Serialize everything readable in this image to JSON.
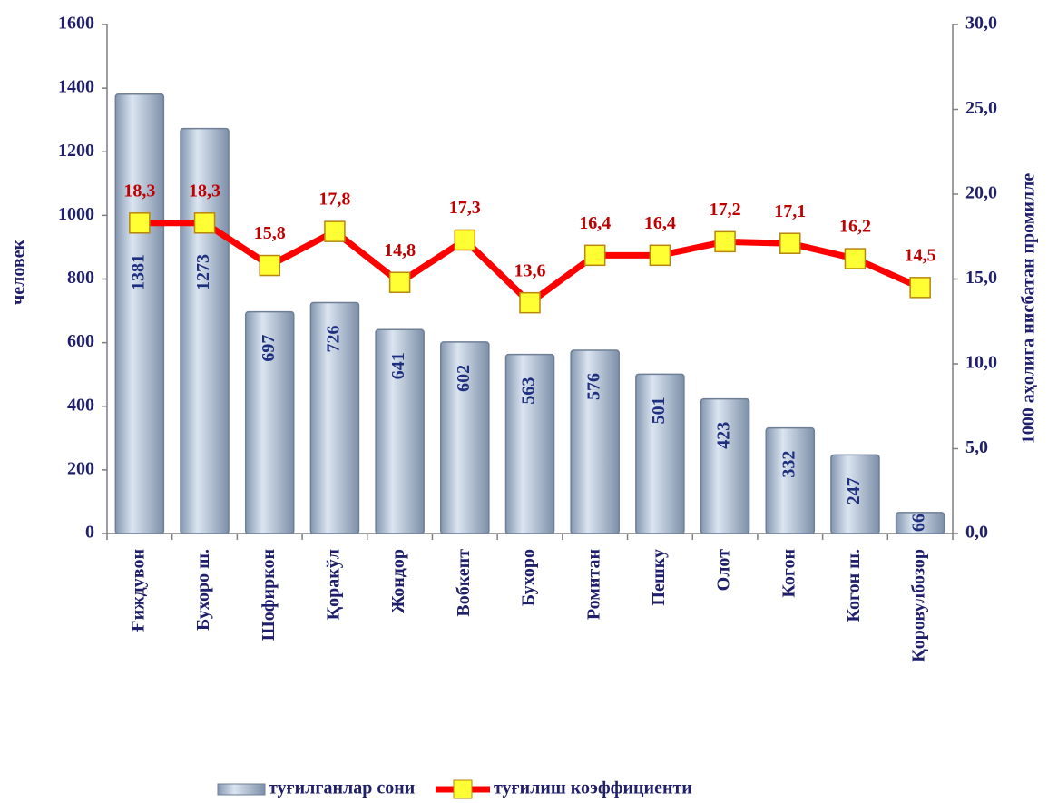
{
  "chart_data": {
    "type": "bar",
    "categories": [
      "Ғиждувон",
      "Бухоро ш.",
      "Шофиркон",
      "Қоракўл",
      "Жондор",
      "Вобкент",
      "Бухоро",
      "Ромитан",
      "Пешку",
      "Олот",
      "Когон",
      "Когон ш.",
      "Қоровулбозор"
    ],
    "series": [
      {
        "name": "туғилганлар сони",
        "type": "bar",
        "color": "#b9c9dd",
        "values": [
          1381,
          1273,
          697,
          726,
          641,
          602,
          563,
          576,
          501,
          423,
          332,
          247,
          66
        ]
      },
      {
        "name": "туғилиш коэффициенти",
        "type": "line",
        "axis": "y2",
        "color": "#ff0000",
        "marker_color": "#ffff33",
        "values": [
          18.3,
          18.3,
          15.8,
          17.8,
          14.8,
          17.3,
          13.6,
          16.4,
          16.4,
          17.2,
          17.1,
          16.2,
          14.5
        ],
        "value_labels": [
          "18,3",
          "18,3",
          "15,8",
          "17,8",
          "14,8",
          "17,3",
          "13,6",
          "16,4",
          "16,4",
          "17,2",
          "17,1",
          "16,2",
          "14,5"
        ]
      }
    ],
    "ylabel": "человек",
    "y2label": "1000 аҳолига нисбатан промилле",
    "ylim": [
      0,
      1600
    ],
    "yticks": [
      0,
      200,
      400,
      600,
      800,
      1000,
      1200,
      1400,
      1600
    ],
    "y2lim": [
      0,
      30
    ],
    "y2ticks": [
      {
        "value": 0,
        "label": "0,0"
      },
      {
        "value": 5,
        "label": "5,0"
      },
      {
        "value": 10,
        "label": "10,0"
      },
      {
        "value": 15,
        "label": "15,0"
      },
      {
        "value": 20,
        "label": "20,0"
      },
      {
        "value": 25,
        "label": "25,0"
      },
      {
        "value": 30,
        "label": "30,0"
      }
    ],
    "grid": false,
    "legend": "bottom"
  }
}
